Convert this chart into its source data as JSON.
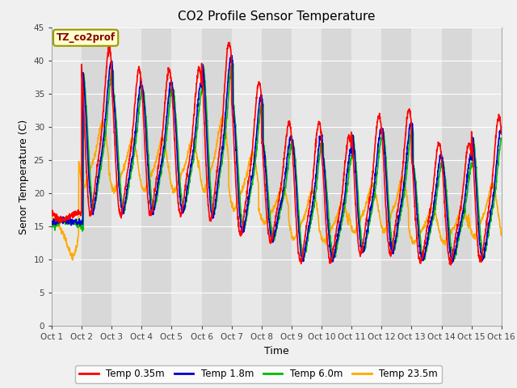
{
  "title": "CO2 Profile Sensor Temperature",
  "xlabel": "Time",
  "ylabel": "Senor Temperature (C)",
  "annotation": "TZ_co2prof",
  "n_days": 15,
  "ylim": [
    0,
    45
  ],
  "yticks": [
    0,
    5,
    10,
    15,
    20,
    25,
    30,
    35,
    40,
    45
  ],
  "xtick_labels": [
    "Oct 1",
    "Oct 2",
    "Oct 3",
    "Oct 4",
    "Oct 5",
    "Oct 6",
    "Oct 7",
    "Oct 8",
    "Oct 9",
    "Oct 10",
    "Oct 11",
    "Oct 12",
    "Oct 13",
    "Oct 14",
    "Oct 15",
    "Oct 16"
  ],
  "series_colors": [
    "#ff0000",
    "#0000cc",
    "#00bb00",
    "#ffaa00"
  ],
  "series_labels": [
    "Temp 0.35m",
    "Temp 1.8m",
    "Temp 6.0m",
    "Temp 23.5m"
  ],
  "fig_facecolor": "#f0f0f0",
  "plot_facecolor": "#e0e0e0",
  "band_light": "#e8e8e8",
  "band_dark": "#d8d8d8",
  "grid_color": "#ffffff",
  "annotation_facecolor": "#ffffcc",
  "annotation_edgecolor": "#999900",
  "annotation_textcolor": "#880000",
  "legend_facecolor": "#ffffff",
  "line_width": 1.2
}
